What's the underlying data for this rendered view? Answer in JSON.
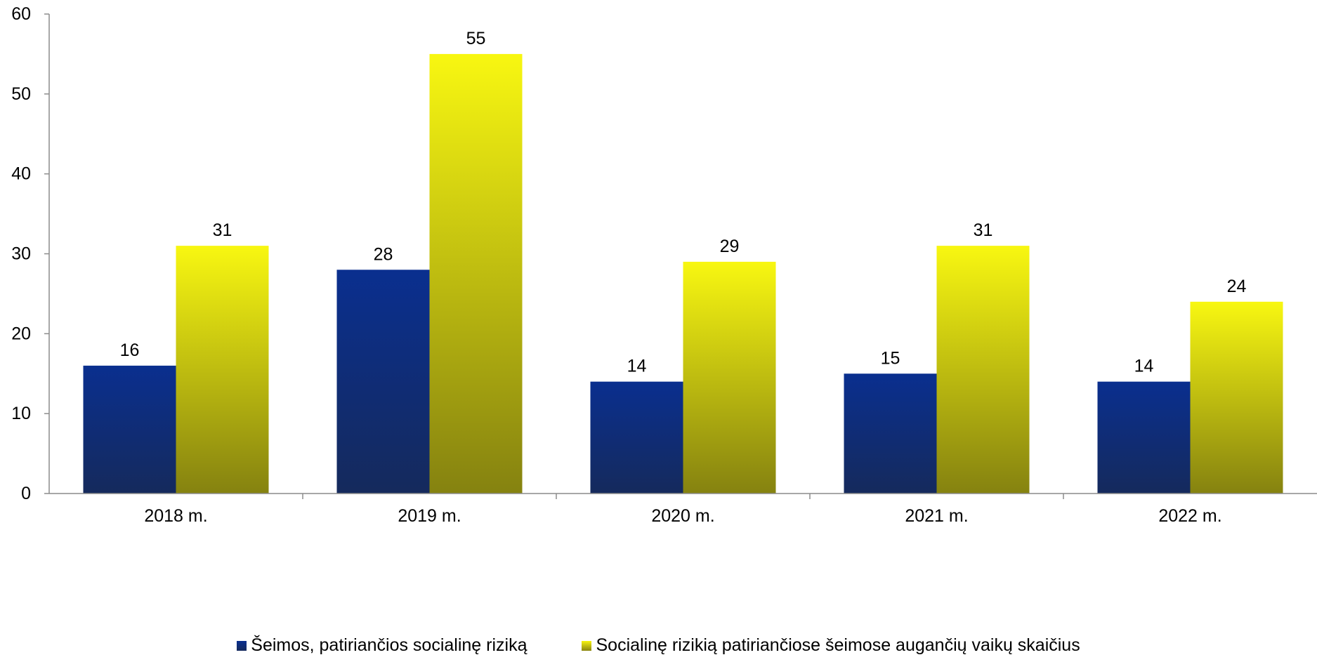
{
  "chart_data": {
    "type": "bar",
    "categories": [
      "2018 m.",
      "2019 m.",
      "2020 m.",
      "2021 m.",
      "2022 m."
    ],
    "series": [
      {
        "name": "Šeimos, patiriančios socialinę riziką",
        "values": [
          16,
          28,
          14,
          15,
          14
        ],
        "color": "#0a2f8f"
      },
      {
        "name": "Socialinę rizikią patiriančiose šeimose augančių vaikų skaičius",
        "values": [
          31,
          55,
          29,
          31,
          24
        ],
        "color": "#f7f40f"
      }
    ],
    "yticks": [
      "0",
      "10",
      "20",
      "30",
      "40",
      "50",
      "60"
    ],
    "ylim": [
      0,
      60
    ],
    "title": "",
    "xlabel": "",
    "ylabel": "",
    "grid": false,
    "legend_position": "bottom"
  }
}
